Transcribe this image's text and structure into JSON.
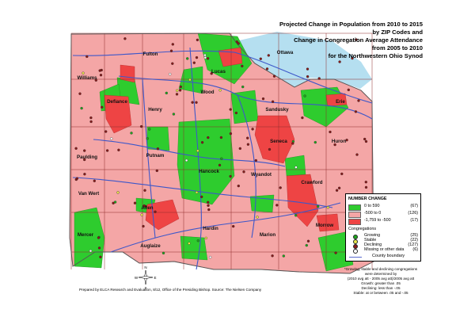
{
  "title_lines": [
    "Projected Change in Population from 2010 to 2015",
    "by ZIP Codes and",
    "Change in Congregation Average Attendance",
    "from 2005 to 2010",
    "for the Northwestern Ohio Synod"
  ],
  "colors": {
    "green": "#2ecc2e",
    "pink": "#f4a6a6",
    "red": "#ee4444",
    "road": "#3d57c9",
    "water": "#b5dff0",
    "boundary": "#8f2a2a",
    "dot_growing": "#1fa81f",
    "dot_stable": "#e8e84a",
    "dot_declining": "#8a1a1a",
    "dot_missing": "#ffffff"
  },
  "counties": [
    {
      "name": "Williams"
    },
    {
      "name": "Fulton"
    },
    {
      "name": "Lucas"
    },
    {
      "name": "Ottawa"
    },
    {
      "name": "Wood"
    },
    {
      "name": "Defiance"
    },
    {
      "name": "Henry"
    },
    {
      "name": "Sandusky"
    },
    {
      "name": "Erie"
    },
    {
      "name": "Seneca"
    },
    {
      "name": "Huron"
    },
    {
      "name": "Paulding"
    },
    {
      "name": "Putnam"
    },
    {
      "name": "Hancock"
    },
    {
      "name": "Wyandot"
    },
    {
      "name": "Crawford"
    },
    {
      "name": "Van Wert"
    },
    {
      "name": "Allen"
    },
    {
      "name": "Hardin"
    },
    {
      "name": "Marion"
    },
    {
      "name": "Morrow"
    },
    {
      "name": "Mercer"
    },
    {
      "name": "Auglaize"
    }
  ],
  "legend": {
    "number_change_title": "NUMBER CHANGE",
    "number_change": [
      {
        "label": "0  to  590",
        "count": "(67)",
        "color": "#2ecc2e"
      },
      {
        "label": "-500  to  0",
        "count": "(126)",
        "color": "#f4a6a6"
      },
      {
        "label": "-1,759 to -500",
        "count": "(17)",
        "color": "#ee4444"
      }
    ],
    "congregations_title": "Congregations",
    "congregations": [
      {
        "label": "Growing",
        "count": "(25)",
        "color": "#1fa81f"
      },
      {
        "label": "Stable",
        "count": "(22)",
        "color": "#e8e84a"
      },
      {
        "label": "Declining",
        "count": "(127)",
        "color": "#8a1a1a"
      },
      {
        "label": "Missing or other data",
        "count": "(6)",
        "color": "#ffffff"
      }
    ],
    "boundary_label": "County boundary"
  },
  "note_lines": [
    "*Growing, stable and declining congregations",
    "were determined by",
    "(2010 avg att - 2005 avg att)/2005 avg att",
    "Growth: greater than .05",
    "Declining: less than -.05",
    "Stable: at or between .05 and -.05"
  ],
  "footer": "Prepared by ELCA Research and Evaluation, 8/12, Office of the Presiding Bishop. Source: The Nielsen Company",
  "compass": {
    "n": "N",
    "s": "S",
    "e": "E",
    "w": "W"
  }
}
